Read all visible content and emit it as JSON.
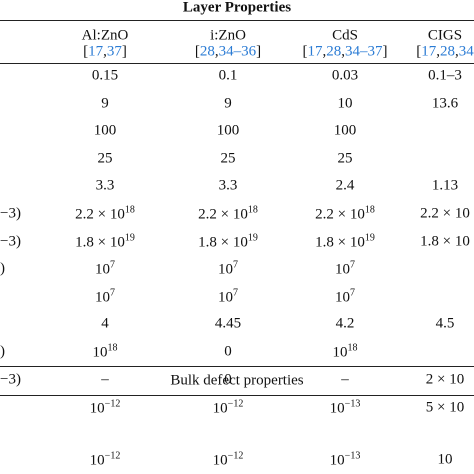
{
  "title": "Layer Properties",
  "columns": [
    {
      "name": "Al:ZnO",
      "refs": [
        "[",
        "17",
        ",",
        "37",
        "]"
      ]
    },
    {
      "name": "i:ZnO",
      "refs": [
        "[",
        "28",
        ",",
        "34",
        "–",
        "36",
        "]"
      ]
    },
    {
      "name": "CdS",
      "refs": [
        "[",
        "17",
        ",",
        "28",
        ",",
        "34",
        "–",
        "37",
        "]"
      ]
    },
    {
      "name": "CIGS",
      "refs": [
        "[",
        "17",
        ",",
        "28",
        ",",
        "34"
      ]
    }
  ],
  "rows": [
    {
      "label": null,
      "cells": [
        {
          "text": "0.15"
        },
        {
          "text": "0.1"
        },
        {
          "text": "0.03"
        },
        {
          "text": "0.1–3"
        }
      ]
    },
    {
      "label": null,
      "cells": [
        {
          "text": "9"
        },
        {
          "text": "9"
        },
        {
          "text": "10"
        },
        {
          "text": "13.6"
        }
      ]
    },
    {
      "label": null,
      "cells": [
        {
          "text": "100"
        },
        {
          "text": "100"
        },
        {
          "text": "100"
        },
        null
      ]
    },
    {
      "label": null,
      "cells": [
        {
          "text": "25"
        },
        {
          "text": "25"
        },
        {
          "text": "25"
        },
        null
      ]
    },
    {
      "label": null,
      "cells": [
        {
          "text": "3.3"
        },
        {
          "text": "3.3"
        },
        {
          "text": "2.4"
        },
        {
          "text": "1.13"
        }
      ]
    },
    {
      "label": "−3)",
      "cells": [
        {
          "text": "2.2 × 10",
          "sup": "18"
        },
        {
          "text": "2.2 × 10",
          "sup": "18"
        },
        {
          "text": "2.2 × 10",
          "sup": "18"
        },
        {
          "text": "2.2 × 10"
        }
      ]
    },
    {
      "label": "−3)",
      "cells": [
        {
          "text": "1.8 × 10",
          "sup": "19"
        },
        {
          "text": "1.8 × 10",
          "sup": "19"
        },
        {
          "text": "1.8 × 10",
          "sup": "19"
        },
        {
          "text": "1.8 × 10"
        }
      ]
    },
    {
      "label": ")",
      "cells": [
        {
          "text": "10",
          "sup": "7"
        },
        {
          "text": "10",
          "sup": "7"
        },
        {
          "text": "10",
          "sup": "7"
        },
        null
      ]
    },
    {
      "label": null,
      "cells": [
        {
          "text": "10",
          "sup": "7"
        },
        {
          "text": "10",
          "sup": "7"
        },
        {
          "text": "10",
          "sup": "7"
        },
        null
      ]
    },
    {
      "label": null,
      "cells": [
        {
          "text": "4"
        },
        {
          "text": "4.45"
        },
        {
          "text": "4.2"
        },
        {
          "text": "4.5"
        }
      ]
    },
    {
      "label": ")",
      "cells": [
        {
          "text": "10",
          "sup": "18"
        },
        {
          "text": "0"
        },
        {
          "text": "10",
          "sup": "18"
        },
        null
      ]
    },
    {
      "label": "−3)",
      "cells": [
        {
          "text": "–"
        },
        {
          "text": "0"
        },
        {
          "text": "–"
        },
        {
          "text": "2 × 10"
        }
      ]
    }
  ],
  "section": "Bulk defect properties",
  "bulk_rows": [
    {
      "cells": [
        {
          "text": "10",
          "sup": "−12"
        },
        {
          "text": "10",
          "sup": "−12"
        },
        {
          "text": "10",
          "sup": "−13"
        },
        {
          "text": "5 × 10"
        }
      ]
    },
    {
      "cells": [
        {
          "text": "10",
          "sup": "−12"
        },
        {
          "text": "10",
          "sup": "−12"
        },
        {
          "text": "10",
          "sup": "−13"
        },
        {
          "text": "10"
        }
      ]
    }
  ]
}
